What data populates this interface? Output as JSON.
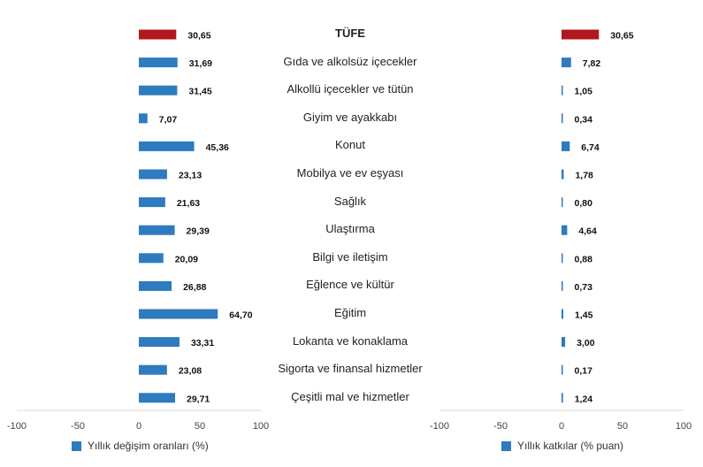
{
  "chart_data": [
    {
      "type": "bar",
      "orientation": "horizontal",
      "categories": [
        "TÜFE",
        "Gıda ve alkolsüz içecekler",
        "Alkollü içecekler ve tütün",
        "Giyim ve ayakkabı",
        "Konut",
        "Mobilya ve ev eşyası",
        "Sağlık",
        "Ulaştırma",
        "Bilgi ve iletişim",
        "Eğlence ve kültür",
        "Eğitim",
        "Lokanta ve konaklama",
        "Sigorta ve finansal hizmetler",
        "Çeşitli mal ve hizmetler"
      ],
      "values": [
        30.65,
        31.69,
        31.45,
        7.07,
        45.36,
        23.13,
        21.63,
        29.39,
        20.09,
        26.88,
        64.7,
        33.31,
        23.08,
        29.71
      ],
      "value_labels": [
        "30,65",
        "31,69",
        "31,45",
        "7,07",
        "45,36",
        "23,13",
        "21,63",
        "29,39",
        "20,09",
        "26,88",
        "64,70",
        "33,31",
        "23,08",
        "29,71"
      ],
      "xlim": [
        -100,
        100
      ],
      "xticks": [
        "-100",
        "-50",
        "0",
        "50",
        "100"
      ],
      "legend": "Yıllık değişim oranları (%)",
      "legend_position": "bottom-left",
      "colors": {
        "series": "#2E7BBF",
        "highlight": "#B0181E"
      },
      "grid": false
    },
    {
      "type": "bar",
      "orientation": "horizontal",
      "categories": [
        "TÜFE",
        "Gıda ve alkolsüz içecekler",
        "Alkollü içecekler ve tütün",
        "Giyim ve ayakkabı",
        "Konut",
        "Mobilya ve ev eşyası",
        "Sağlık",
        "Ulaştırma",
        "Bilgi ve iletişim",
        "Eğlence ve kültür",
        "Eğitim",
        "Lokanta ve konaklama",
        "Sigorta ve finansal hizmetler",
        "Çeşitli mal ve hizmetler"
      ],
      "values": [
        30.65,
        7.82,
        1.05,
        0.34,
        6.74,
        1.78,
        0.8,
        4.64,
        0.88,
        0.73,
        1.45,
        3.0,
        0.17,
        1.24
      ],
      "value_labels": [
        "30,65",
        "7,82",
        "1,05",
        "0,34",
        "6,74",
        "1,78",
        "0,80",
        "4,64",
        "0,88",
        "0,73",
        "1,45",
        "3,00",
        "0,17",
        "1,24"
      ],
      "xlim": [
        -100,
        100
      ],
      "xticks": [
        "-100",
        "-50",
        "0",
        "50",
        "100"
      ],
      "legend": "Yıllık katkılar (% puan)",
      "legend_position": "bottom-right",
      "colors": {
        "series": "#2E7BBF",
        "highlight": "#B0181E"
      },
      "grid": false
    }
  ]
}
